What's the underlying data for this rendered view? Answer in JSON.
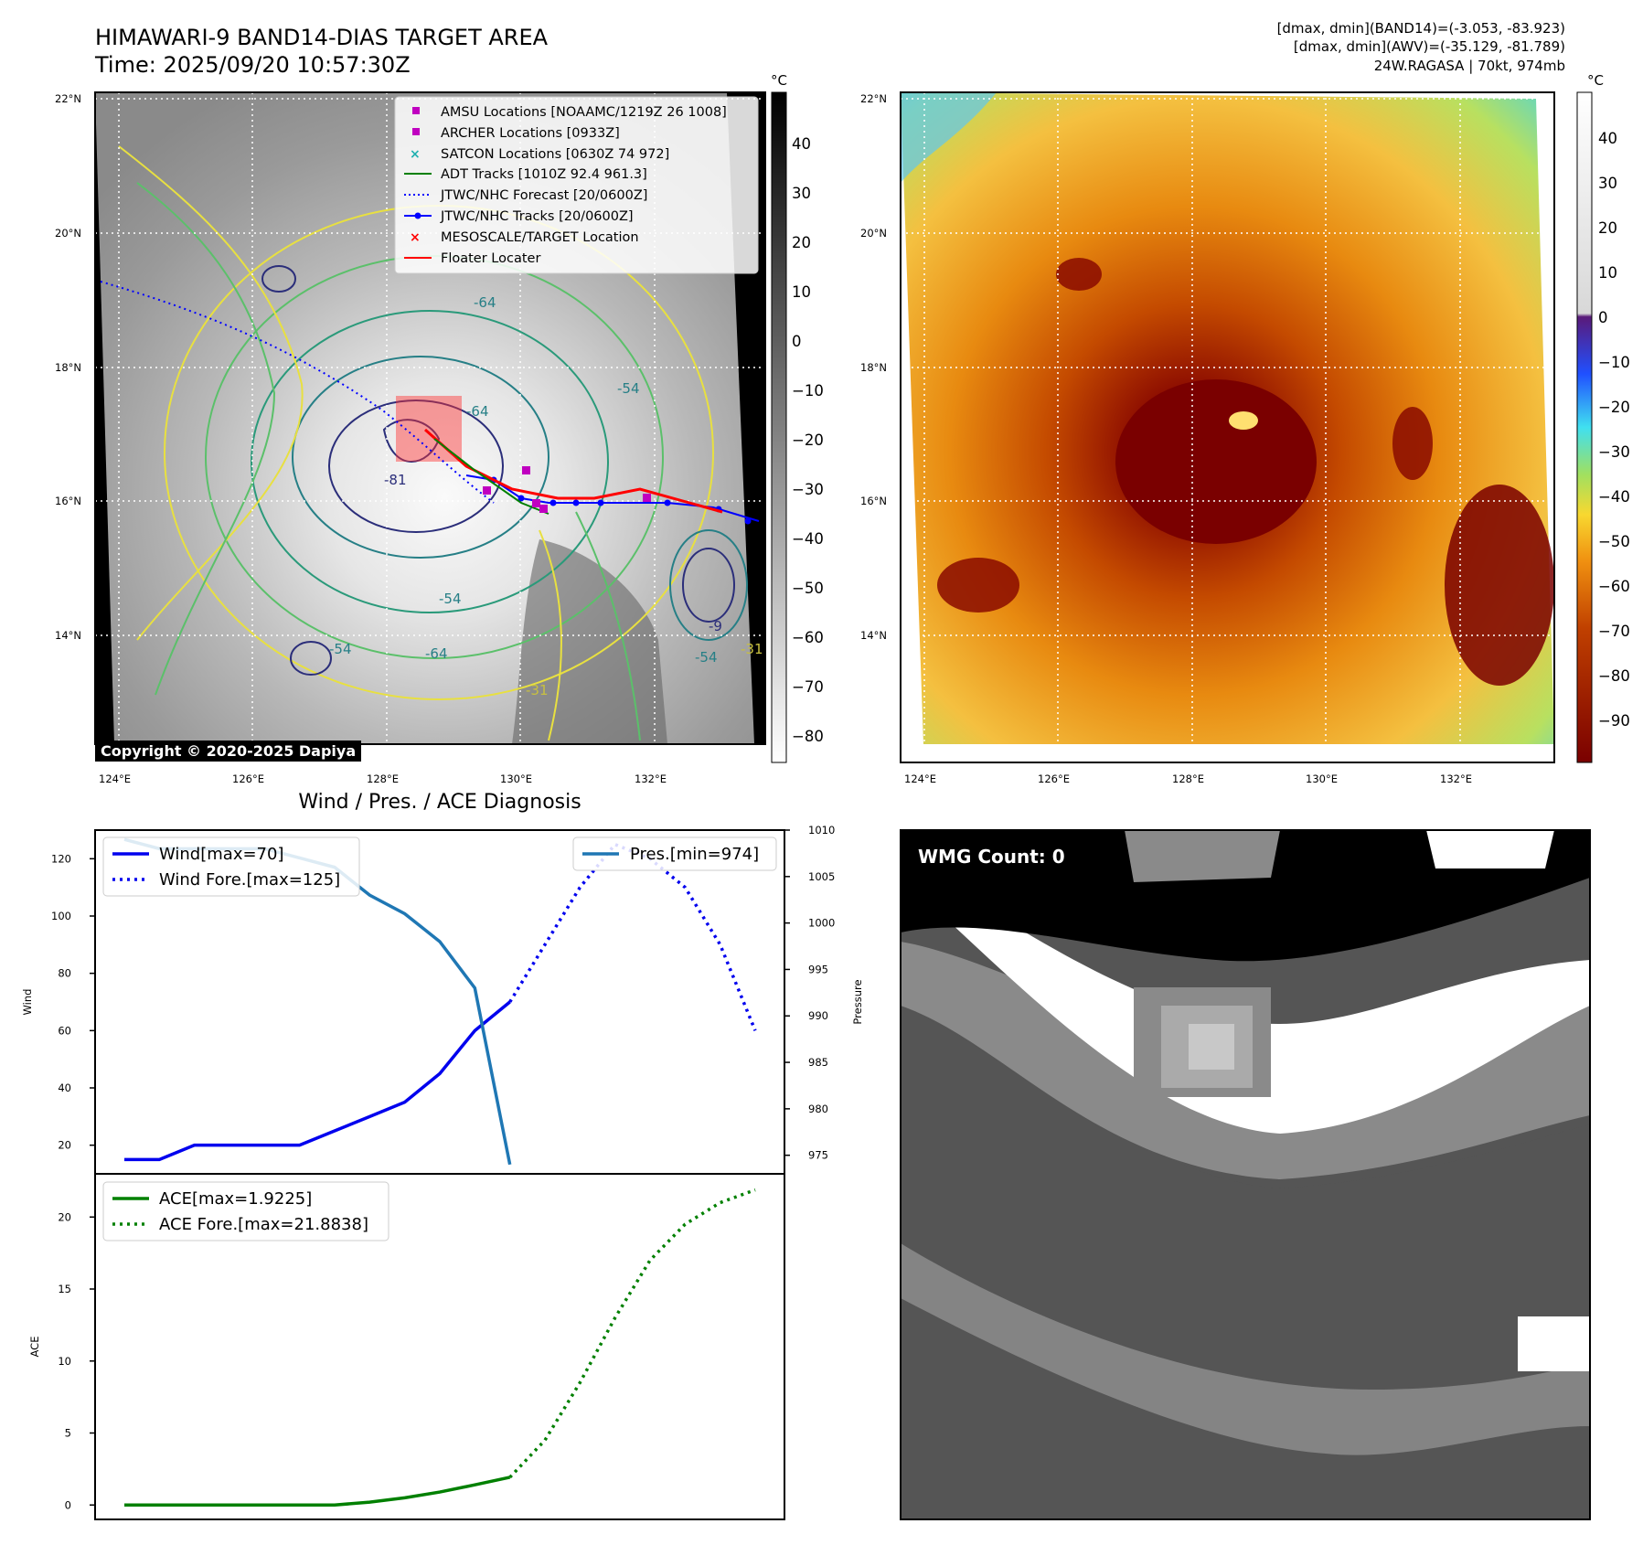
{
  "header": {
    "title_line1": "HIMAWARI-9 BAND14-DIAS TARGET AREA",
    "title_line2": "Time: 2025/09/20 10:57:30Z",
    "info_line1": "[dmax, dmin](BAND14)=(-3.053, -83.923)",
    "info_line2": "[dmax, dmin](AWV)=(-35.129, -81.789)",
    "info_line3": "24W.RAGASA | 70kt, 974mb"
  },
  "map": {
    "lat_labels": [
      "22°N",
      "20°N",
      "18°N",
      "16°N",
      "14°N"
    ],
    "lon_labels": [
      "124°E",
      "126°E",
      "128°E",
      "130°E",
      "132°E"
    ],
    "contour_labels": [
      "-64",
      "-64",
      "-81",
      "-54",
      "-54",
      "-54",
      "-31",
      "-31",
      "-9",
      "-64",
      "-54"
    ],
    "copyright": "Copyright © 2020-2025 Dapiya",
    "legend": [
      {
        "label": "AMSU Locations [NOAAMC/1219Z 26 1008]",
        "symbol": "square",
        "color": "#c000c0"
      },
      {
        "label": "ARCHER Locations [0933Z]",
        "symbol": "square",
        "color": "#c000c0"
      },
      {
        "label": "SATCON Locations [0630Z 74 972]",
        "symbol": "x",
        "color": "#20b0b0"
      },
      {
        "label": "ADT Tracks [1010Z 92.4 961.3]",
        "symbol": "line",
        "color": "#008000"
      },
      {
        "label": "JTWC/NHC Forecast [20/0600Z]",
        "symbol": "dotted",
        "color": "#0000ff"
      },
      {
        "label": "JTWC/NHC Tracks [20/0600Z]",
        "symbol": "line-dot",
        "color": "#0000ff"
      },
      {
        "label": "MESOSCALE/TARGET Location",
        "symbol": "x",
        "color": "#ff0000"
      },
      {
        "label": "Floater Locater",
        "symbol": "line",
        "color": "#ff0000"
      }
    ],
    "colorbar_unit": "°C",
    "colorbar_ticks": [
      "40",
      "30",
      "20",
      "10",
      "0",
      "−10",
      "−20",
      "−30",
      "−40",
      "−50",
      "−60",
      "−70",
      "−80"
    ]
  },
  "awv_map": {
    "lat_labels": [
      "22°N",
      "20°N",
      "18°N",
      "16°N",
      "14°N"
    ],
    "lon_labels": [
      "124°E",
      "126°E",
      "128°E",
      "130°E",
      "132°E"
    ],
    "colorbar_unit": "°C",
    "colorbar_ticks": [
      "40",
      "30",
      "20",
      "10",
      "0",
      "−10",
      "−20",
      "−30",
      "−40",
      "−50",
      "−60",
      "−70",
      "−80",
      "−90"
    ]
  },
  "wmg": {
    "label": "WMG Count: 0"
  },
  "chart_data": [
    {
      "type": "line",
      "title": "Wind / Pres. / ACE Diagnosis",
      "ylabel": "Wind",
      "ylabel_right": "Pressure",
      "ylim": [
        10,
        130
      ],
      "ylim_right": [
        973,
        1010
      ],
      "yticks": [
        20,
        40,
        60,
        80,
        100,
        120
      ],
      "yticks_right": [
        975,
        980,
        985,
        990,
        995,
        1000,
        1005,
        1010
      ],
      "x_count": 19,
      "series": [
        {
          "name": "Wind[max=70]",
          "axis": "left",
          "style": "solid",
          "color": "#0000ee",
          "x": [
            0,
            1,
            2,
            3,
            4,
            5,
            6,
            7,
            8,
            9,
            10,
            11
          ],
          "values": [
            15,
            15,
            20,
            20,
            20,
            20,
            25,
            30,
            35,
            45,
            60,
            70
          ]
        },
        {
          "name": "Wind Fore.[max=125]",
          "axis": "left",
          "style": "dotted",
          "color": "#0000ee",
          "x": [
            11,
            12,
            13,
            14,
            15,
            16,
            17,
            18
          ],
          "values": [
            70,
            90,
            110,
            125,
            120,
            110,
            90,
            60
          ]
        },
        {
          "name": "Pres.[min=974]",
          "axis": "right",
          "style": "solid",
          "color": "#1f77b4",
          "x": [
            0,
            1,
            2,
            3,
            4,
            5,
            6,
            7,
            8,
            9,
            10,
            11
          ],
          "values": [
            1009,
            1008,
            1008,
            1008,
            1008,
            1007,
            1006,
            1003,
            1001,
            998,
            993,
            974
          ]
        }
      ],
      "legend_left": [
        "Wind[max=70]",
        "Wind Fore.[max=125]"
      ],
      "legend_right": [
        "Pres.[min=974]"
      ]
    },
    {
      "type": "line",
      "ylabel": "ACE",
      "ylim": [
        -1,
        23
      ],
      "yticks": [
        0,
        5,
        10,
        15,
        20
      ],
      "x_count": 19,
      "series": [
        {
          "name": "ACE[max=1.9225]",
          "style": "solid",
          "color": "#008000",
          "x": [
            0,
            1,
            2,
            3,
            4,
            5,
            6,
            7,
            8,
            9,
            10,
            11
          ],
          "values": [
            0,
            0,
            0,
            0,
            0,
            0,
            0,
            0.2,
            0.5,
            0.9,
            1.4,
            1.9225
          ]
        },
        {
          "name": "ACE Fore.[max=21.8838]",
          "style": "dotted",
          "color": "#008000",
          "x": [
            11,
            12,
            13,
            14,
            15,
            16,
            17,
            18
          ],
          "values": [
            1.9225,
            4.5,
            8.5,
            13,
            17,
            19.5,
            21,
            21.8838
          ]
        }
      ]
    }
  ]
}
